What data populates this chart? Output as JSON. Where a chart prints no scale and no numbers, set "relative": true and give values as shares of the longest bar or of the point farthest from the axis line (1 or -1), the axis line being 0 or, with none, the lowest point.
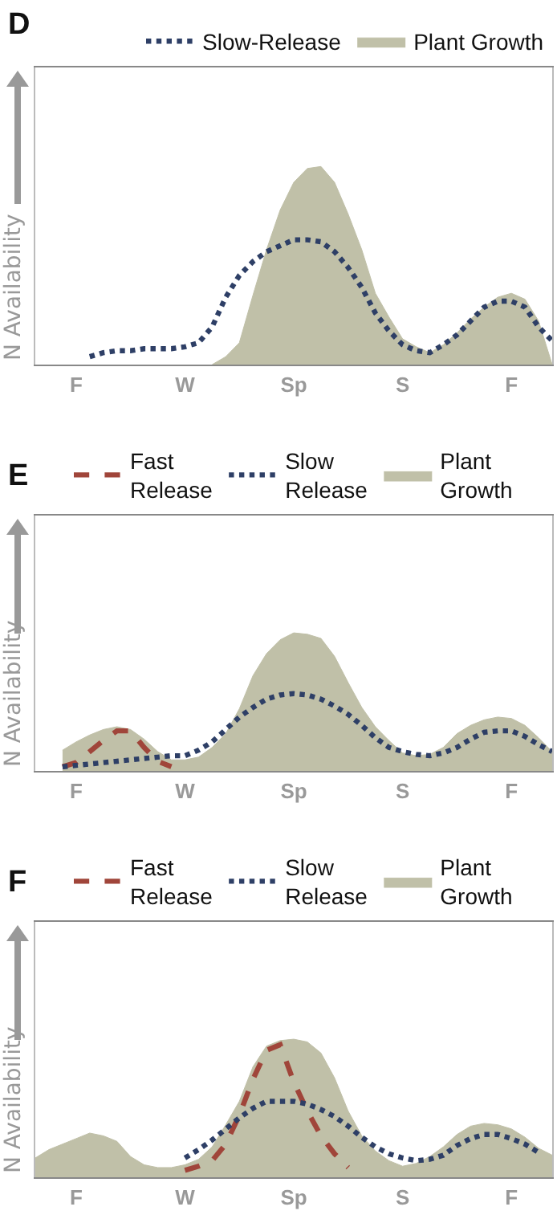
{
  "chart_data": [
    {
      "type": "line",
      "title": "D",
      "ylabel": "N Availability",
      "relative": true,
      "legend": "top right",
      "tick_labels": "x",
      "categories": [
        null,
        null,
        null,
        "F",
        null,
        null,
        null,
        null,
        null,
        null,
        null,
        "W",
        null,
        null,
        null,
        null,
        null,
        null,
        null,
        "Sp",
        null,
        null,
        null,
        null,
        null,
        null,
        null,
        "S",
        null,
        null,
        null,
        null,
        null,
        null,
        null,
        "F",
        null,
        null,
        null
      ],
      "series": [
        {
          "name": "Slow-Release",
          "line_style": "dotted",
          "color": "#2e3f66",
          "values": [
            null,
            null,
            null,
            null,
            0.04,
            0.06,
            0.07,
            0.07,
            0.08,
            0.08,
            0.08,
            0.09,
            0.11,
            0.19,
            0.34,
            0.45,
            0.52,
            0.57,
            0.6,
            0.63,
            0.63,
            0.62,
            0.57,
            0.49,
            0.39,
            0.26,
            0.17,
            0.1,
            0.07,
            0.06,
            0.1,
            0.15,
            0.22,
            0.29,
            0.32,
            0.32,
            0.29,
            0.19,
            0.12
          ]
        },
        {
          "name": "Plant Growth",
          "type": "area",
          "color": "#c0c0a8",
          "values": [
            null,
            null,
            null,
            null,
            null,
            null,
            null,
            null,
            null,
            null,
            null,
            null,
            null,
            0,
            0.04,
            0.11,
            0.35,
            0.58,
            0.78,
            0.92,
            0.99,
            1,
            0.92,
            0.76,
            0.58,
            0.36,
            0.24,
            0.13,
            0.09,
            0.06,
            0.1,
            0.16,
            0.23,
            0.29,
            0.34,
            0.36,
            0.33,
            0.22,
            0
          ]
        }
      ]
    },
    {
      "type": "line",
      "title": "E",
      "ylabel": "N Availability",
      "relative": true,
      "legend": "top",
      "tick_labels": "x",
      "categories": [
        null,
        null,
        null,
        "F",
        null,
        null,
        null,
        null,
        null,
        null,
        null,
        "W",
        null,
        null,
        null,
        null,
        null,
        null,
        null,
        "Sp",
        null,
        null,
        null,
        null,
        null,
        null,
        null,
        "S",
        null,
        null,
        null,
        null,
        null,
        null,
        null,
        "F",
        null,
        null,
        null
      ],
      "series": [
        {
          "name": "Fast Release",
          "line_style": "dashed",
          "color": "#a0453a",
          "values": [
            null,
            null,
            0.03,
            0.06,
            0.14,
            0.22,
            0.29,
            0.29,
            0.17,
            0.07,
            0.03,
            null,
            null,
            null,
            null,
            null,
            null,
            null,
            null,
            null,
            null,
            null,
            null,
            null,
            null,
            null,
            null,
            null,
            null,
            null,
            null,
            null,
            null,
            null,
            null,
            null,
            null,
            null,
            null
          ]
        },
        {
          "name": "Slow Release",
          "line_style": "dotted",
          "color": "#2e3f66",
          "values": [
            null,
            null,
            0.03,
            0.04,
            0.05,
            0.06,
            0.07,
            0.08,
            0.09,
            0.1,
            0.11,
            0.11,
            0.15,
            0.21,
            0.3,
            0.39,
            0.46,
            0.52,
            0.55,
            0.56,
            0.55,
            0.52,
            0.47,
            0.41,
            0.33,
            0.24,
            0.17,
            0.14,
            0.12,
            0.11,
            0.13,
            0.17,
            0.23,
            0.28,
            0.29,
            0.29,
            0.25,
            0.19,
            0.14
          ]
        },
        {
          "name": "Plant Growth",
          "type": "area",
          "color": "#c0c0a8",
          "values": [
            null,
            null,
            0.15,
            0.21,
            0.26,
            0.3,
            0.32,
            0.3,
            0.23,
            0.14,
            0.08,
            0.08,
            0.1,
            0.17,
            0.27,
            0.45,
            0.69,
            0.85,
            0.95,
            1,
            0.99,
            0.96,
            0.83,
            0.64,
            0.46,
            0.32,
            0.22,
            0.13,
            0.11,
            0.12,
            0.17,
            0.27,
            0.33,
            0.37,
            0.39,
            0.38,
            0.33,
            0.24,
            0.14
          ]
        }
      ]
    },
    {
      "type": "line",
      "title": "F",
      "ylabel": "N Availability",
      "relative": true,
      "legend": "top",
      "tick_labels": "x",
      "categories": [
        null,
        null,
        null,
        "F",
        null,
        null,
        null,
        null,
        null,
        null,
        null,
        "W",
        null,
        null,
        null,
        null,
        null,
        null,
        null,
        "Sp",
        null,
        null,
        null,
        null,
        null,
        null,
        null,
        "S",
        null,
        null,
        null,
        null,
        null,
        null,
        null,
        "F",
        null,
        null,
        null
      ],
      "series": [
        {
          "name": "Fast Release",
          "line_style": "dashed",
          "color": "#a0453a",
          "values": [
            null,
            null,
            null,
            null,
            null,
            null,
            null,
            null,
            null,
            null,
            null,
            0.05,
            0.08,
            0.12,
            0.24,
            0.45,
            0.71,
            0.92,
            0.96,
            0.69,
            0.48,
            0.3,
            0.17,
            0.07,
            null,
            null,
            null,
            null,
            null,
            null,
            null,
            null,
            null,
            null,
            null,
            null,
            null,
            null,
            null
          ]
        },
        {
          "name": "Slow Release",
          "line_style": "dotted",
          "color": "#2e3f66",
          "values": [
            null,
            null,
            null,
            null,
            null,
            null,
            null,
            null,
            null,
            null,
            null,
            0.14,
            0.2,
            0.27,
            0.35,
            0.43,
            0.5,
            0.55,
            0.55,
            0.55,
            0.53,
            0.49,
            0.44,
            0.37,
            0.29,
            0.22,
            0.17,
            0.14,
            0.12,
            0.13,
            0.16,
            0.23,
            0.28,
            0.31,
            0.31,
            0.28,
            0.24,
            0.18,
            null
          ]
        },
        {
          "name": "Plant Growth",
          "type": "area",
          "color": "#c0c0a8",
          "values": [
            0.14,
            0.2,
            0.24,
            0.28,
            0.32,
            0.3,
            0.26,
            0.15,
            0.09,
            0.07,
            0.07,
            0.09,
            0.13,
            0.22,
            0.38,
            0.55,
            0.8,
            0.95,
            0.99,
            1,
            0.98,
            0.9,
            0.72,
            0.48,
            0.3,
            0.19,
            0.12,
            0.08,
            0.1,
            0.15,
            0.22,
            0.31,
            0.37,
            0.39,
            0.38,
            0.35,
            0.29,
            0.21,
            0.16
          ]
        }
      ]
    }
  ]
}
